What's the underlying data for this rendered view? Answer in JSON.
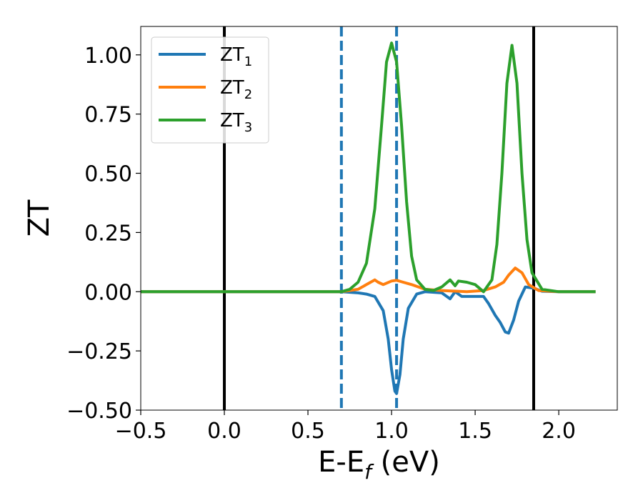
{
  "chart_data": {
    "type": "line",
    "title": "",
    "xlabel": "E-E",
    "xlabel_sub": "f",
    "xlabel_unit": " (eV)",
    "ylabel": "ZT",
    "xlim": [
      -0.5,
      2.35
    ],
    "ylim": [
      -0.5,
      1.12
    ],
    "xticks": [
      -0.5,
      0.0,
      0.5,
      1.0,
      1.5,
      2.0
    ],
    "xtick_labels": [
      "−0.5",
      "0.0",
      "0.5",
      "1.0",
      "1.5",
      "2.0"
    ],
    "yticks": [
      -0.5,
      -0.25,
      0.0,
      0.25,
      0.5,
      0.75,
      1.0
    ],
    "ytick_labels": [
      "−0.50",
      "−0.25",
      "0.00",
      "0.25",
      "0.50",
      "0.75",
      "1.00"
    ],
    "grid": false,
    "legend_position": "top-left",
    "vertical_lines": [
      {
        "x": 0.0,
        "style": "solid",
        "color": "#000000"
      },
      {
        "x": 1.85,
        "style": "solid",
        "color": "#000000"
      },
      {
        "x": 0.7,
        "style": "dashed",
        "color": "#1f77b4"
      },
      {
        "x": 1.03,
        "style": "dashed",
        "color": "#1f77b4"
      }
    ],
    "series": [
      {
        "name": "ZT",
        "name_sub": "1",
        "color": "#1f77b4",
        "points": [
          [
            -0.5,
            0.0
          ],
          [
            0.7,
            0.0
          ],
          [
            0.8,
            -0.005
          ],
          [
            0.85,
            -0.01
          ],
          [
            0.9,
            -0.02
          ],
          [
            0.95,
            -0.08
          ],
          [
            0.98,
            -0.2
          ],
          [
            1.0,
            -0.33
          ],
          [
            1.02,
            -0.42
          ],
          [
            1.03,
            -0.43
          ],
          [
            1.05,
            -0.35
          ],
          [
            1.07,
            -0.2
          ],
          [
            1.1,
            -0.07
          ],
          [
            1.15,
            -0.01
          ],
          [
            1.2,
            0.0
          ],
          [
            1.3,
            -0.005
          ],
          [
            1.35,
            -0.03
          ],
          [
            1.38,
            0.0
          ],
          [
            1.42,
            -0.02
          ],
          [
            1.45,
            -0.02
          ],
          [
            1.5,
            -0.02
          ],
          [
            1.55,
            -0.02
          ],
          [
            1.58,
            -0.05
          ],
          [
            1.62,
            -0.1
          ],
          [
            1.65,
            -0.13
          ],
          [
            1.68,
            -0.17
          ],
          [
            1.7,
            -0.175
          ],
          [
            1.73,
            -0.12
          ],
          [
            1.76,
            -0.04
          ],
          [
            1.8,
            0.02
          ],
          [
            1.85,
            0.015
          ],
          [
            1.9,
            0.002
          ],
          [
            2.0,
            0.0
          ],
          [
            2.22,
            0.0
          ]
        ]
      },
      {
        "name": "ZT",
        "name_sub": "2",
        "color": "#ff7f0e",
        "points": [
          [
            -0.5,
            0.0
          ],
          [
            0.7,
            0.0
          ],
          [
            0.8,
            0.01
          ],
          [
            0.85,
            0.03
          ],
          [
            0.9,
            0.05
          ],
          [
            0.92,
            0.04
          ],
          [
            0.95,
            0.03
          ],
          [
            1.0,
            0.045
          ],
          [
            1.03,
            0.048
          ],
          [
            1.07,
            0.04
          ],
          [
            1.12,
            0.03
          ],
          [
            1.2,
            0.01
          ],
          [
            1.3,
            0.005
          ],
          [
            1.45,
            0.0
          ],
          [
            1.55,
            0.005
          ],
          [
            1.62,
            0.02
          ],
          [
            1.67,
            0.04
          ],
          [
            1.7,
            0.07
          ],
          [
            1.74,
            0.1
          ],
          [
            1.78,
            0.08
          ],
          [
            1.82,
            0.03
          ],
          [
            1.88,
            0.005
          ],
          [
            2.0,
            0.0
          ],
          [
            2.22,
            0.0
          ]
        ]
      },
      {
        "name": "ZT",
        "name_sub": "3",
        "color": "#2ca02c",
        "points": [
          [
            -0.5,
            0.0
          ],
          [
            0.7,
            0.0
          ],
          [
            0.75,
            0.01
          ],
          [
            0.8,
            0.04
          ],
          [
            0.85,
            0.12
          ],
          [
            0.9,
            0.35
          ],
          [
            0.94,
            0.7
          ],
          [
            0.97,
            0.97
          ],
          [
            1.0,
            1.05
          ],
          [
            1.03,
            0.97
          ],
          [
            1.06,
            0.7
          ],
          [
            1.09,
            0.38
          ],
          [
            1.12,
            0.15
          ],
          [
            1.15,
            0.05
          ],
          [
            1.2,
            0.01
          ],
          [
            1.25,
            0.005
          ],
          [
            1.3,
            0.02
          ],
          [
            1.35,
            0.05
          ],
          [
            1.38,
            0.025
          ],
          [
            1.4,
            0.045
          ],
          [
            1.45,
            0.04
          ],
          [
            1.5,
            0.03
          ],
          [
            1.55,
            0.0
          ],
          [
            1.6,
            0.05
          ],
          [
            1.63,
            0.2
          ],
          [
            1.66,
            0.5
          ],
          [
            1.69,
            0.88
          ],
          [
            1.72,
            1.04
          ],
          [
            1.75,
            0.88
          ],
          [
            1.78,
            0.5
          ],
          [
            1.81,
            0.22
          ],
          [
            1.84,
            0.08
          ],
          [
            1.9,
            0.01
          ],
          [
            2.0,
            0.0
          ],
          [
            2.22,
            0.0
          ]
        ]
      }
    ]
  }
}
